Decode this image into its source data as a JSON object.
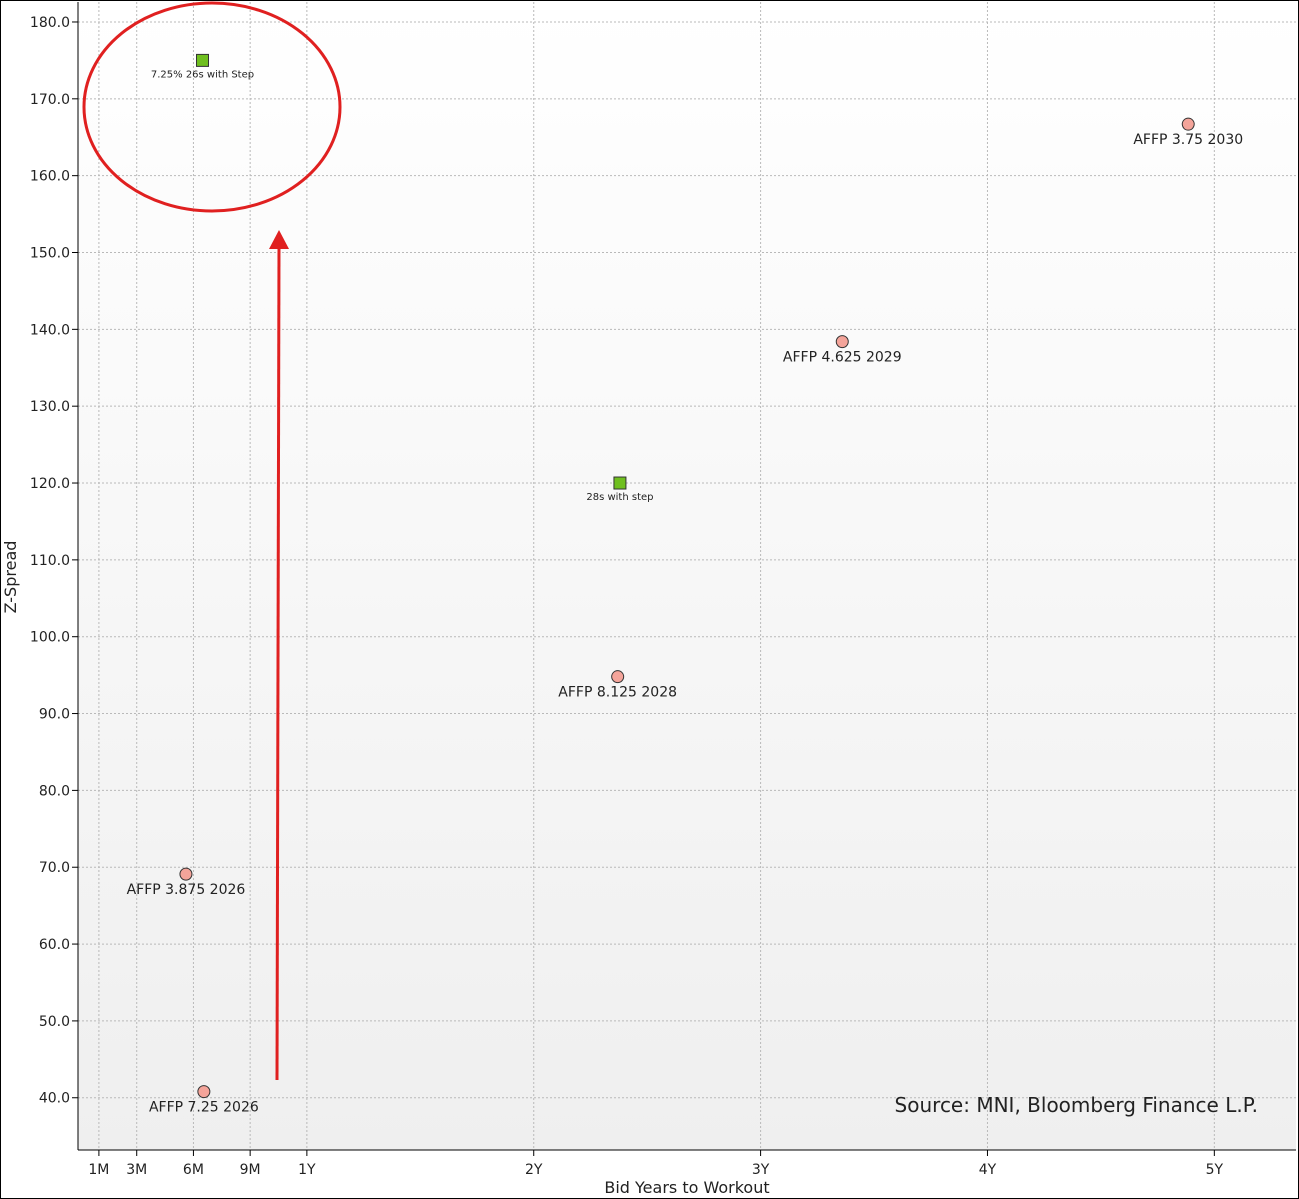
{
  "chart_data": {
    "type": "scatter",
    "x_label": "Bid Years to Workout",
    "y_label": "Z-Spread",
    "annotation": "Source: MNI, Bloomberg Finance L.P.",
    "xlim": [
      0,
      5.36
    ],
    "ylim": [
      33.2,
      182.6
    ],
    "xticks": [
      {
        "value": 0.0833,
        "label": "1M"
      },
      {
        "value": 0.25,
        "label": "3M"
      },
      {
        "value": 0.5,
        "label": "6M"
      },
      {
        "value": 0.75,
        "label": "9M"
      },
      {
        "value": 1,
        "label": "1Y"
      },
      {
        "value": 2,
        "label": "2Y"
      },
      {
        "value": 3,
        "label": "3Y"
      },
      {
        "value": 4,
        "label": "4Y"
      },
      {
        "value": 5,
        "label": "5Y"
      }
    ],
    "yticks": [
      {
        "value": 40,
        "label": "40.0"
      },
      {
        "value": 50,
        "label": "50.0"
      },
      {
        "value": 60,
        "label": "60.0"
      },
      {
        "value": 70,
        "label": "70.0"
      },
      {
        "value": 80,
        "label": "80.0"
      },
      {
        "value": 90,
        "label": "90.0"
      },
      {
        "value": 100,
        "label": "100.0"
      },
      {
        "value": 110,
        "label": "110.0"
      },
      {
        "value": 120,
        "label": "120.0"
      },
      {
        "value": 130,
        "label": "130.0"
      },
      {
        "value": 140,
        "label": "140.0"
      },
      {
        "value": 150,
        "label": "150.0"
      },
      {
        "value": 160,
        "label": "160.0"
      },
      {
        "value": 170,
        "label": "170.0"
      },
      {
        "value": 180,
        "label": "180.0"
      }
    ],
    "grid": true,
    "series": [
      {
        "color": "#6fbf1f",
        "marker": "square",
        "x": [
          0.54,
          2.38
        ],
        "y": [
          175,
          120
        ],
        "labels": [
          "7.25% 26s with Step",
          "28s with step"
        ]
      },
      {
        "color": "#f4a49a",
        "marker": "circle",
        "x": [
          4.885,
          3.36,
          2.37,
          0.467,
          0.546
        ],
        "y": [
          166.7,
          138.4,
          94.8,
          69.1,
          40.8
        ],
        "labels": [
          "AFFP 3.75 2030",
          "AFFP 4.625 2029",
          "AFFP 8.125 2028",
          "AFFP 3.875 2026",
          "AFFP 7.25 2026"
        ]
      }
    ]
  }
}
